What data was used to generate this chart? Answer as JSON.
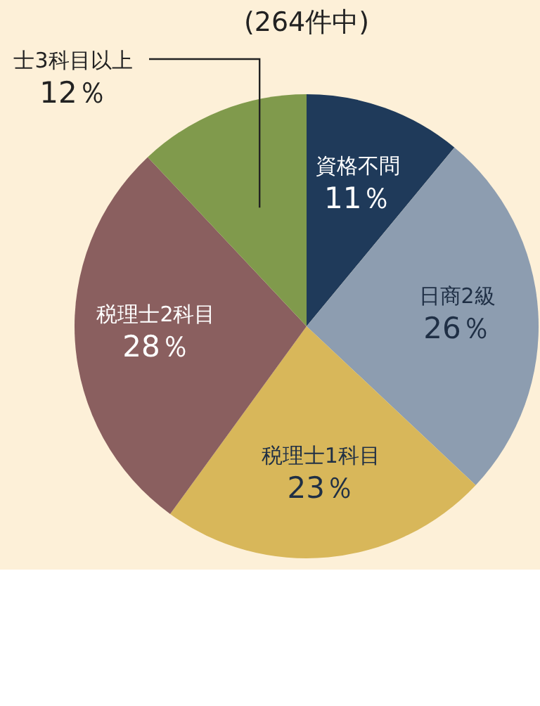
{
  "chart_data": {
    "type": "pie",
    "title": "(264件中)",
    "categories": [
      "資格不問",
      "日商2級",
      "税理士1科目",
      "税理士2科目",
      "士3科目以上"
    ],
    "values": [
      11,
      26,
      23,
      28,
      12
    ],
    "colors": [
      "#1f3a5a",
      "#8d9db0",
      "#d8b75a",
      "#8a5f5f",
      "#809a4c"
    ],
    "value_labels": [
      "11％",
      "26％",
      "23％",
      "28％",
      "12％"
    ]
  }
}
